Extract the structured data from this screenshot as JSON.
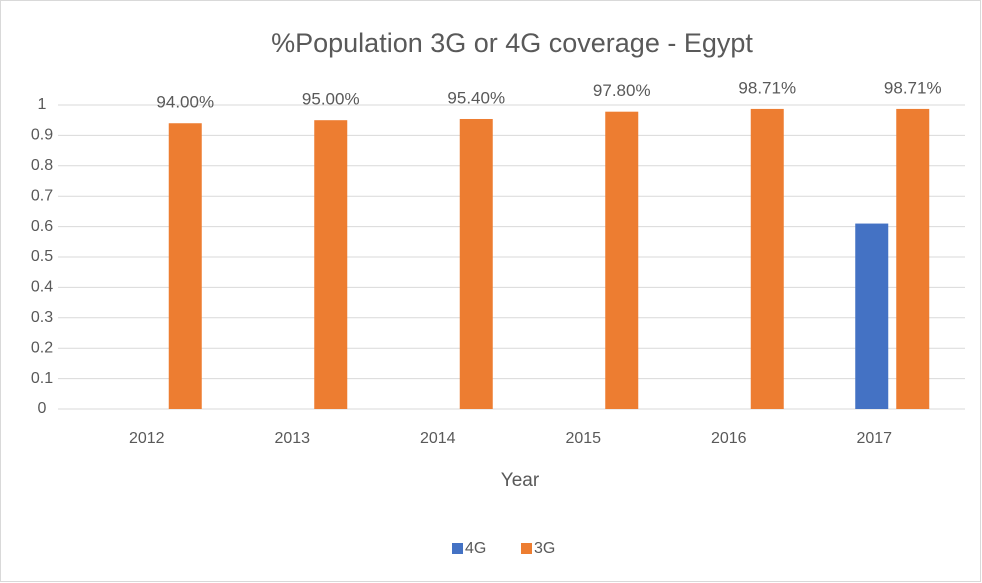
{
  "chart_data": {
    "type": "bar",
    "title": "%Population 3G or 4G coverage - Egypt",
    "x_label": "Year",
    "categories": [
      "2012",
      "2013",
      "2014",
      "2015",
      "2016",
      "2017"
    ],
    "series": [
      {
        "name": "4G",
        "color": "#4472c4",
        "values": [
          null,
          null,
          null,
          null,
          null,
          0.61
        ]
      },
      {
        "name": "3G",
        "color": "#ed7d31",
        "values": [
          0.94,
          0.95,
          0.954,
          0.978,
          0.9871,
          0.9871
        ],
        "value_labels": [
          "94.00%",
          "95.00%",
          "95.40%",
          "97.80%",
          "98.71%",
          "98.71%"
        ]
      }
    ],
    "ylim": [
      0,
      1
    ],
    "yticks": [
      0,
      0.1,
      0.2,
      0.3,
      0.4,
      0.5,
      0.6,
      0.7,
      0.8,
      0.9,
      1
    ],
    "grid": true,
    "legend": "bottom"
  }
}
